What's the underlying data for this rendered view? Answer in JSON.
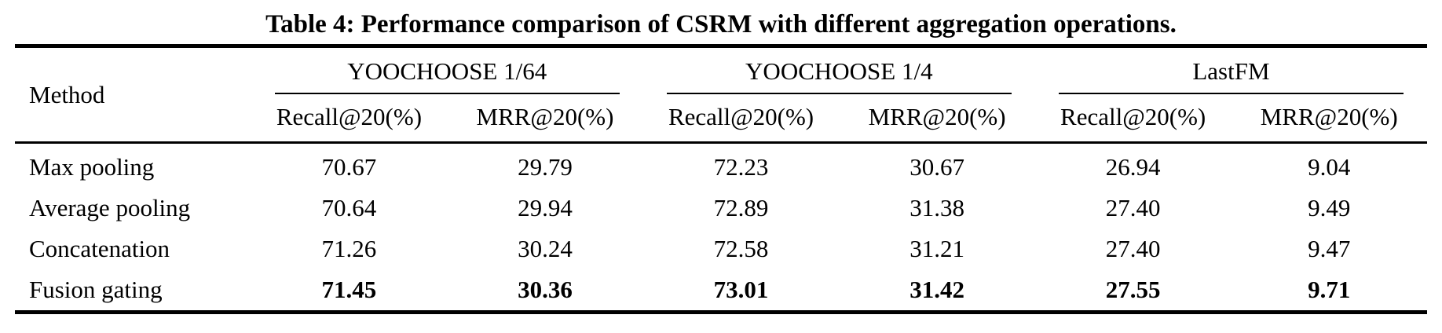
{
  "caption": "Table 4: Performance comparison of CSRM with different aggregation operations.",
  "table": {
    "method_header": "Method",
    "groups": [
      {
        "label": "YOOCHOOSE 1/64"
      },
      {
        "label": "YOOCHOOSE 1/4"
      },
      {
        "label": "LastFM"
      }
    ],
    "subheaders": [
      "Recall@20(%)",
      "MRR@20(%)",
      "Recall@20(%)",
      "MRR@20(%)",
      "Recall@20(%)",
      "MRR@20(%)"
    ],
    "rows": [
      {
        "method": "Max pooling",
        "values": [
          "70.67",
          "29.79",
          "72.23",
          "30.67",
          "26.94",
          "9.04"
        ],
        "bold": false
      },
      {
        "method": "Average pooling",
        "values": [
          "70.64",
          "29.94",
          "72.89",
          "31.38",
          "27.40",
          "9.49"
        ],
        "bold": false
      },
      {
        "method": "Concatenation",
        "values": [
          "71.26",
          "30.24",
          "72.58",
          "31.21",
          "27.40",
          "9.47"
        ],
        "bold": false
      },
      {
        "method": "Fusion gating",
        "values": [
          "71.45",
          "30.36",
          "73.01",
          "31.42",
          "27.55",
          "9.71"
        ],
        "bold": true
      }
    ]
  },
  "chart_data": {
    "type": "table",
    "title": "Table 4: Performance comparison of CSRM with different aggregation operations.",
    "columns": [
      "Method",
      "YOOCHOOSE 1/64 Recall@20(%)",
      "YOOCHOOSE 1/64 MRR@20(%)",
      "YOOCHOOSE 1/4 Recall@20(%)",
      "YOOCHOOSE 1/4 MRR@20(%)",
      "LastFM Recall@20(%)",
      "LastFM MRR@20(%)"
    ],
    "rows": [
      [
        "Max pooling",
        70.67,
        29.79,
        72.23,
        30.67,
        26.94,
        9.04
      ],
      [
        "Average pooling",
        70.64,
        29.94,
        72.89,
        31.38,
        27.4,
        9.49
      ],
      [
        "Concatenation",
        71.26,
        30.24,
        72.58,
        31.21,
        27.4,
        9.47
      ],
      [
        "Fusion gating",
        71.45,
        30.36,
        73.01,
        31.42,
        27.55,
        9.71
      ]
    ],
    "bold_row": "Fusion gating",
    "colors": {
      "text": "#000000",
      "rules": "#000000",
      "background": "#ffffff"
    }
  }
}
